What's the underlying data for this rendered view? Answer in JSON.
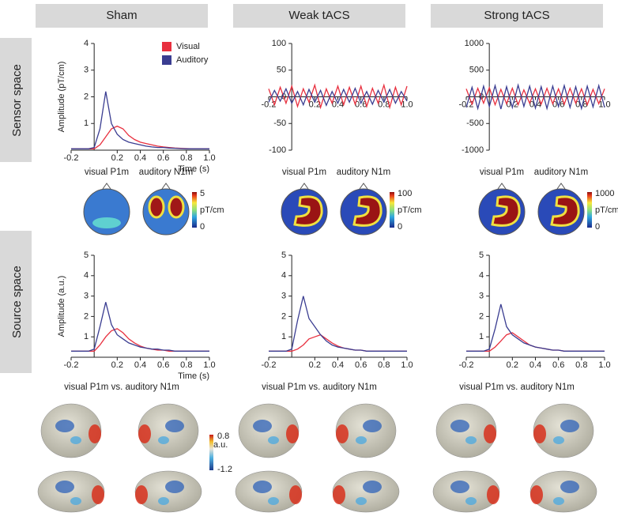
{
  "columns": [
    "Sham",
    "Weak tACS",
    "Strong tACS"
  ],
  "rows": [
    "Sensor space",
    "Source space"
  ],
  "topomaps": [
    {
      "labels": [
        "visual P1m",
        "auditory N1m"
      ],
      "colorbar": {
        "max": 5,
        "unit": "pT/cm",
        "min": 0
      }
    },
    {
      "labels": [
        "visual P1m",
        "auditory N1m"
      ],
      "colorbar": {
        "max": 100,
        "unit": "pT/cm",
        "min": 0
      }
    },
    {
      "labels": [
        "visual P1m",
        "auditory N1m"
      ],
      "colorbar": {
        "max": 1000,
        "unit": "pT/cm",
        "min": 0
      }
    }
  ],
  "source_maps": {
    "labels": [
      "visual P1m vs. auditory N1m",
      "visual P1m vs. auditory N1m",
      "visual P1m vs. auditory N1m"
    ],
    "colorbar": {
      "max": 0.8,
      "unit": "a.u.",
      "min": -1.2
    }
  },
  "chart_data": [
    {
      "type": "line",
      "ylabel": "Amplitude (pT/cm)",
      "xlabel": "Time (s)",
      "legend": "top-right",
      "x": [
        -0.2,
        -0.15,
        -0.1,
        -0.05,
        0,
        0.05,
        0.1,
        0.15,
        0.2,
        0.25,
        0.3,
        0.35,
        0.4,
        0.45,
        0.5,
        0.55,
        0.6,
        0.65,
        0.7,
        0.75,
        0.8,
        0.85,
        0.9,
        0.95,
        1.0
      ],
      "xlim": [
        -0.2,
        1.0
      ],
      "xticks": [
        -0.2,
        0.2,
        0.4,
        0.6,
        0.8,
        {
          "value": 1,
          "label": "1.0"
        }
      ],
      "ylim": [
        0,
        4
      ],
      "yticks": [
        1,
        2,
        3,
        4
      ],
      "series": [
        {
          "name": "Visual",
          "color": "#e8303f",
          "values": [
            0.05,
            0.05,
            0.05,
            0.05,
            0.05,
            0.2,
            0.5,
            0.8,
            0.9,
            0.8,
            0.55,
            0.4,
            0.3,
            0.25,
            0.2,
            0.15,
            0.12,
            0.1,
            0.08,
            0.07,
            0.06,
            0.05,
            0.05,
            0.05,
            0.05
          ]
        },
        {
          "name": "Auditory",
          "color": "#3a3d91",
          "values": [
            0.05,
            0.05,
            0.05,
            0.05,
            0.1,
            0.8,
            2.2,
            1.0,
            0.6,
            0.4,
            0.3,
            0.25,
            0.2,
            0.15,
            0.12,
            0.1,
            0.1,
            0.08,
            0.07,
            0.06,
            0.05,
            0.05,
            0.05,
            0.05,
            0.05
          ]
        }
      ]
    },
    {
      "type": "line",
      "x": [
        -0.2,
        -0.15,
        -0.1,
        -0.05,
        0,
        0.05,
        0.1,
        0.15,
        0.2,
        0.25,
        0.3,
        0.35,
        0.4,
        0.45,
        0.5,
        0.55,
        0.6,
        0.65,
        0.7,
        0.75,
        0.8,
        0.85,
        0.9,
        0.95,
        1.0
      ],
      "xlim": [
        -0.2,
        1.0
      ],
      "xticks": [
        -0.2,
        0.2,
        0.4,
        0.6,
        0.8,
        {
          "value": 1,
          "label": "1.0"
        }
      ],
      "ylim": [
        -100,
        100
      ],
      "yticks": [
        -100,
        -50,
        0,
        50,
        100
      ],
      "series": [
        {
          "color": "#e8303f",
          "values": [
            15,
            -15,
            18,
            -12,
            20,
            -18,
            15,
            -10,
            22,
            -20,
            15,
            -12,
            20,
            -15,
            18,
            -14,
            20,
            -18,
            16,
            -12,
            22,
            -20,
            18,
            -15,
            20
          ]
        },
        {
          "color": "#3a3d91",
          "values": [
            -10,
            12,
            -8,
            15,
            -12,
            10,
            -15,
            14,
            -10,
            12,
            -16,
            10,
            -12,
            14,
            -10,
            16,
            -12,
            10,
            -14,
            12,
            -10,
            14,
            -12,
            10,
            -8
          ]
        }
      ]
    },
    {
      "type": "line",
      "x": [
        -0.2,
        -0.15,
        -0.1,
        -0.05,
        0,
        0.05,
        0.1,
        0.15,
        0.2,
        0.25,
        0.3,
        0.35,
        0.4,
        0.45,
        0.5,
        0.55,
        0.6,
        0.65,
        0.7,
        0.75,
        0.8,
        0.85,
        0.9,
        0.95,
        1.0
      ],
      "xlim": [
        -0.2,
        1.0
      ],
      "xticks": [
        -0.2,
        0.2,
        0.4,
        0.6,
        0.8,
        {
          "value": 1,
          "label": "1.0"
        }
      ],
      "ylim": [
        -1000,
        1000
      ],
      "yticks": [
        -1000,
        -500,
        0,
        500,
        1000
      ],
      "series": [
        {
          "color": "#e8303f",
          "values": [
            150,
            -140,
            160,
            -120,
            170,
            -150,
            140,
            -130,
            160,
            -150,
            130,
            -120,
            150,
            -140,
            160,
            -130,
            150,
            -140,
            160,
            -120,
            150,
            -150,
            140,
            -130,
            150
          ]
        },
        {
          "color": "#3a3d91",
          "values": [
            -200,
            180,
            -220,
            200,
            -180,
            210,
            -230,
            190,
            -200,
            220,
            -180,
            200,
            -210,
            190,
            -220,
            200,
            -180,
            210,
            -200,
            190,
            -220,
            200,
            -190,
            210,
            -200
          ]
        }
      ]
    },
    {
      "type": "line",
      "ylabel": "Amplitude (a.u.)",
      "xlabel": "Time (s)",
      "x": [
        -0.2,
        -0.15,
        -0.1,
        -0.05,
        0,
        0.05,
        0.1,
        0.15,
        0.2,
        0.25,
        0.3,
        0.35,
        0.4,
        0.45,
        0.5,
        0.55,
        0.6,
        0.65,
        0.7,
        0.75,
        0.8,
        0.85,
        0.9,
        0.95,
        1.0
      ],
      "xlim": [
        -0.2,
        1.0
      ],
      "xticks": [
        -0.2,
        0.2,
        0.4,
        0.6,
        0.8,
        {
          "value": 1,
          "label": "1.0"
        }
      ],
      "ylim": [
        0,
        5
      ],
      "yticks": [
        1,
        2,
        3,
        4,
        5
      ],
      "series": [
        {
          "color": "#e8303f",
          "values": [
            0.3,
            0.3,
            0.3,
            0.3,
            0.3,
            0.6,
            1.0,
            1.3,
            1.4,
            1.2,
            0.9,
            0.7,
            0.55,
            0.45,
            0.4,
            0.35,
            0.35,
            0.3,
            0.3,
            0.3,
            0.3,
            0.3,
            0.3,
            0.3,
            0.3
          ]
        },
        {
          "color": "#3a3d91",
          "values": [
            0.3,
            0.3,
            0.3,
            0.3,
            0.4,
            1.5,
            2.7,
            1.6,
            1.1,
            0.9,
            0.7,
            0.6,
            0.5,
            0.45,
            0.4,
            0.4,
            0.35,
            0.35,
            0.3,
            0.3,
            0.3,
            0.3,
            0.3,
            0.3,
            0.3
          ]
        }
      ]
    },
    {
      "type": "line",
      "x": [
        -0.2,
        -0.15,
        -0.1,
        -0.05,
        0,
        0.05,
        0.1,
        0.15,
        0.2,
        0.25,
        0.3,
        0.35,
        0.4,
        0.45,
        0.5,
        0.55,
        0.6,
        0.65,
        0.7,
        0.75,
        0.8,
        0.85,
        0.9,
        0.95,
        1.0
      ],
      "xlim": [
        -0.2,
        1.0
      ],
      "xticks": [
        -0.2,
        0.2,
        0.4,
        0.6,
        0.8,
        {
          "value": 1,
          "label": "1.0"
        }
      ],
      "ylim": [
        0,
        5
      ],
      "yticks": [
        1,
        2,
        3,
        4,
        5
      ],
      "series": [
        {
          "color": "#e8303f",
          "values": [
            0.3,
            0.3,
            0.3,
            0.3,
            0.3,
            0.4,
            0.6,
            0.9,
            1.0,
            1.1,
            0.9,
            0.7,
            0.55,
            0.45,
            0.4,
            0.35,
            0.35,
            0.3,
            0.3,
            0.3,
            0.3,
            0.3,
            0.3,
            0.3,
            0.3
          ]
        },
        {
          "color": "#3a3d91",
          "values": [
            0.3,
            0.3,
            0.3,
            0.3,
            0.4,
            1.8,
            3.0,
            1.9,
            1.5,
            1.1,
            0.8,
            0.6,
            0.5,
            0.45,
            0.4,
            0.35,
            0.35,
            0.3,
            0.3,
            0.3,
            0.3,
            0.3,
            0.3,
            0.3,
            0.3
          ]
        }
      ]
    },
    {
      "type": "line",
      "x": [
        -0.2,
        -0.15,
        -0.1,
        -0.05,
        0,
        0.05,
        0.1,
        0.15,
        0.2,
        0.25,
        0.3,
        0.35,
        0.4,
        0.45,
        0.5,
        0.55,
        0.6,
        0.65,
        0.7,
        0.75,
        0.8,
        0.85,
        0.9,
        0.95,
        1.0
      ],
      "xlim": [
        -0.2,
        1.0
      ],
      "xticks": [
        -0.2,
        0.2,
        0.4,
        0.6,
        0.8,
        {
          "value": 1,
          "label": "1.0"
        }
      ],
      "ylim": [
        0,
        5
      ],
      "yticks": [
        1,
        2,
        3,
        4,
        5
      ],
      "series": [
        {
          "color": "#e8303f",
          "values": [
            0.3,
            0.3,
            0.3,
            0.3,
            0.3,
            0.5,
            0.8,
            1.1,
            1.2,
            1.0,
            0.8,
            0.6,
            0.5,
            0.45,
            0.4,
            0.35,
            0.35,
            0.3,
            0.3,
            0.3,
            0.3,
            0.3,
            0.3,
            0.3,
            0.3
          ]
        },
        {
          "color": "#3a3d91",
          "values": [
            0.3,
            0.3,
            0.3,
            0.3,
            0.4,
            1.4,
            2.6,
            1.5,
            1.1,
            0.9,
            0.7,
            0.6,
            0.5,
            0.45,
            0.4,
            0.35,
            0.35,
            0.3,
            0.3,
            0.3,
            0.3,
            0.3,
            0.3,
            0.3,
            0.3
          ]
        }
      ]
    }
  ]
}
